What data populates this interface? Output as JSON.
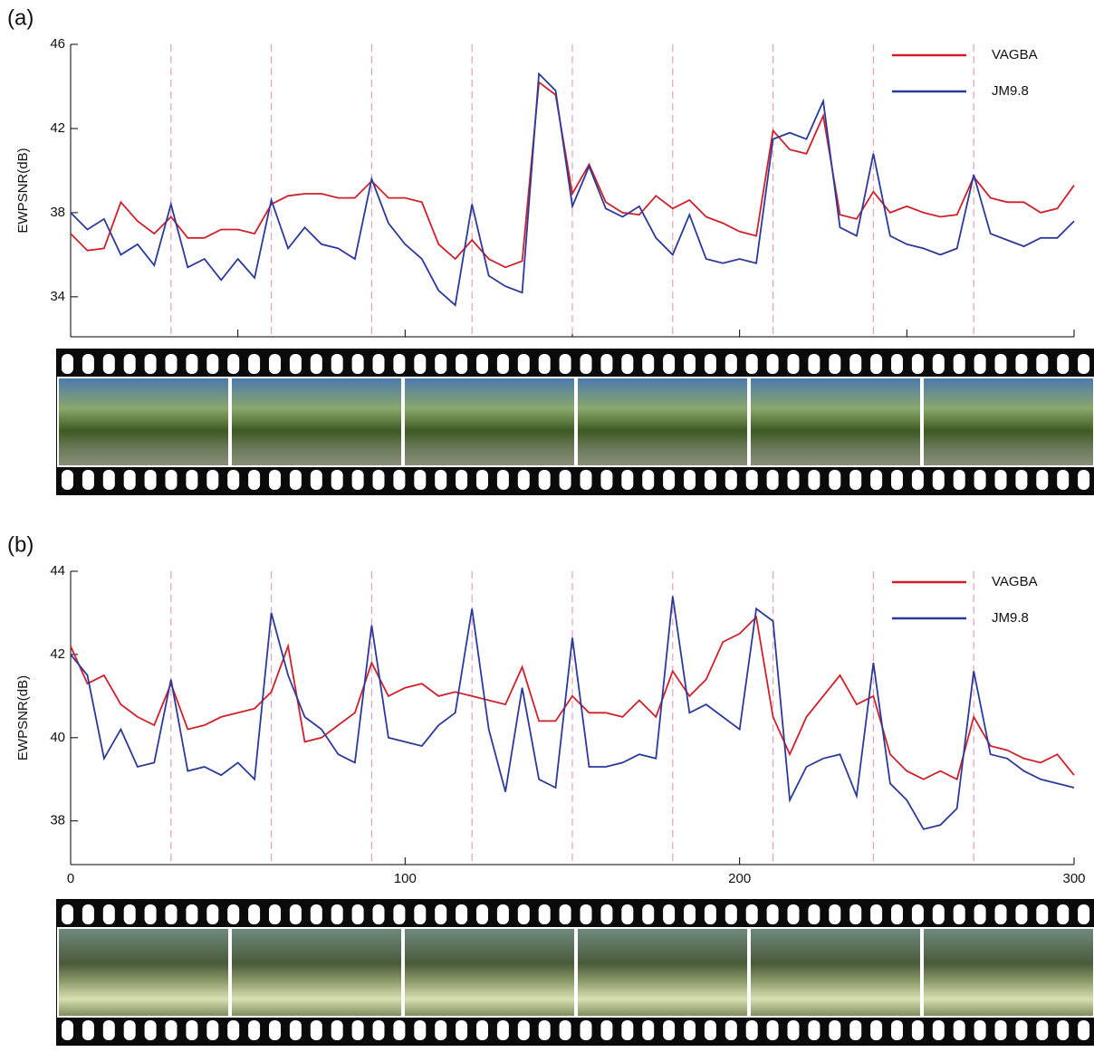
{
  "chart_data": [
    {
      "type": "line",
      "label": "(a)",
      "ylabel": "EWPSNR(dB)",
      "x": [
        0,
        5,
        10,
        15,
        20,
        25,
        30,
        35,
        40,
        45,
        50,
        55,
        60,
        65,
        70,
        75,
        80,
        85,
        90,
        95,
        100,
        105,
        110,
        115,
        120,
        125,
        130,
        135,
        140,
        145,
        150,
        155,
        160,
        165,
        170,
        175,
        180,
        185,
        190,
        195,
        200,
        205,
        210,
        215,
        220,
        225,
        230,
        235,
        240,
        245,
        250,
        255,
        260,
        265,
        270,
        275,
        280,
        285,
        290,
        295,
        300
      ],
      "series": [
        {
          "name": "VAGBA",
          "color": "#d0202a",
          "values": [
            37.0,
            36.2,
            36.3,
            38.5,
            37.6,
            37.0,
            37.8,
            36.8,
            36.8,
            37.2,
            37.2,
            37.0,
            38.4,
            38.8,
            38.9,
            38.9,
            38.7,
            38.7,
            39.5,
            38.7,
            38.7,
            38.5,
            36.5,
            35.8,
            36.7,
            35.8,
            35.4,
            35.7,
            44.2,
            43.6,
            38.9,
            40.3,
            38.5,
            38.0,
            37.9,
            38.8,
            38.2,
            38.6,
            37.8,
            37.5,
            37.1,
            36.9,
            41.9,
            41.0,
            40.8,
            42.6,
            37.9,
            37.7,
            39.0,
            38.0,
            38.3,
            38.0,
            37.8,
            37.9,
            39.7,
            38.7,
            38.5,
            38.5,
            38.0,
            38.2,
            39.3
          ]
        },
        {
          "name": "JM9.8",
          "color": "#2b3a9a",
          "values": [
            38.0,
            37.2,
            37.7,
            36.0,
            36.5,
            35.5,
            38.4,
            35.4,
            35.8,
            34.8,
            35.8,
            34.9,
            38.6,
            36.3,
            37.3,
            36.5,
            36.3,
            35.8,
            39.6,
            37.5,
            36.5,
            35.8,
            34.3,
            33.6,
            38.4,
            35.0,
            34.5,
            34.2,
            44.6,
            43.8,
            38.3,
            40.2,
            38.2,
            37.8,
            38.3,
            36.8,
            36.0,
            37.9,
            35.8,
            35.6,
            35.8,
            35.6,
            41.5,
            41.8,
            41.5,
            43.3,
            37.3,
            36.9,
            40.8,
            36.9,
            36.5,
            36.3,
            36.0,
            36.3,
            39.8,
            37.0,
            36.7,
            36.4,
            36.8,
            36.8,
            37.6
          ]
        }
      ],
      "xlim": [
        0,
        300
      ],
      "xticks": [
        0,
        50,
        100,
        150,
        200,
        250,
        300
      ],
      "xtick_labels": false,
      "ylim": [
        32.1,
        46
      ],
      "yticks": [
        34,
        38,
        42,
        46
      ],
      "vlines": [
        30,
        60,
        90,
        120,
        150,
        180,
        210,
        240,
        270
      ],
      "vline_color": "#e8a0b8",
      "legend": "upper right",
      "grid": false
    },
    {
      "type": "line",
      "label": "(b)",
      "ylabel": "EWPSNR(dB)",
      "x": [
        0,
        5,
        10,
        15,
        20,
        25,
        30,
        35,
        40,
        45,
        50,
        55,
        60,
        65,
        70,
        75,
        80,
        85,
        90,
        95,
        100,
        105,
        110,
        115,
        120,
        125,
        130,
        135,
        140,
        145,
        150,
        155,
        160,
        165,
        170,
        175,
        180,
        185,
        190,
        195,
        200,
        205,
        210,
        215,
        220,
        225,
        230,
        235,
        240,
        245,
        250,
        255,
        260,
        265,
        270,
        275,
        280,
        285,
        290,
        295,
        300
      ],
      "series": [
        {
          "name": "VAGBA",
          "color": "#d0202a",
          "values": [
            42.2,
            41.3,
            41.5,
            40.8,
            40.5,
            40.3,
            41.3,
            40.2,
            40.3,
            40.5,
            40.6,
            40.7,
            41.1,
            42.2,
            39.9,
            40.0,
            40.3,
            40.6,
            41.8,
            41.0,
            41.2,
            41.3,
            41.0,
            41.1,
            41.0,
            40.9,
            40.8,
            41.7,
            40.4,
            40.4,
            41.0,
            40.6,
            40.6,
            40.5,
            40.9,
            40.5,
            41.6,
            41.0,
            41.4,
            42.3,
            42.5,
            42.9,
            40.5,
            39.6,
            40.5,
            41.0,
            41.5,
            40.8,
            41.0,
            39.6,
            39.2,
            39.0,
            39.2,
            39.0,
            40.5,
            39.8,
            39.7,
            39.5,
            39.4,
            39.6,
            39.1
          ]
        },
        {
          "name": "JM9.8",
          "color": "#2b3a9a",
          "values": [
            42.0,
            41.5,
            39.5,
            40.2,
            39.3,
            39.4,
            41.4,
            39.2,
            39.3,
            39.1,
            39.4,
            39.0,
            43.0,
            41.5,
            40.5,
            40.2,
            39.6,
            39.4,
            42.7,
            40.0,
            39.9,
            39.8,
            40.3,
            40.6,
            43.1,
            40.2,
            38.7,
            41.2,
            39.0,
            38.8,
            42.4,
            39.3,
            39.3,
            39.4,
            39.6,
            39.5,
            43.4,
            40.6,
            40.8,
            40.5,
            40.2,
            43.1,
            42.8,
            38.5,
            39.3,
            39.5,
            39.6,
            38.6,
            41.8,
            38.9,
            38.5,
            37.8,
            37.9,
            38.3,
            41.6,
            39.6,
            39.5,
            39.2,
            39.0,
            38.9,
            38.8
          ]
        }
      ],
      "xlim": [
        0,
        300
      ],
      "xticks": [
        0,
        100,
        200,
        300
      ],
      "xtick_labels": true,
      "ylim": [
        36.95,
        44
      ],
      "yticks": [
        38,
        40,
        42,
        44
      ],
      "vlines": [
        30,
        60,
        90,
        120,
        150,
        180,
        210,
        240,
        270
      ],
      "vline_color": "#e8a0b8",
      "legend": "upper right",
      "grid": false
    }
  ]
}
